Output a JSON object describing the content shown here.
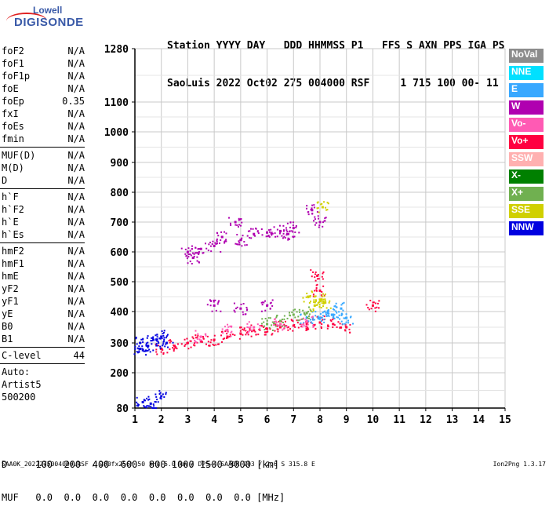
{
  "logo": {
    "line1": "Lowell",
    "line2": "DIGISONDE"
  },
  "header": {
    "line1": "Station YYYY DAY   DDD HHMMSS P1   FFS S AXN PPS IGA PS",
    "line2": "SaoLuis 2022 Oct02 275 004000 RSF     1 715 100 00- 11"
  },
  "params": {
    "group1": [
      {
        "label": "foF2",
        "value": "N/A"
      },
      {
        "label": "foF1",
        "value": "N/A"
      },
      {
        "label": "foF1p",
        "value": "N/A"
      },
      {
        "label": "foE",
        "value": "N/A"
      },
      {
        "label": "foEp",
        "value": "0.35"
      },
      {
        "label": "fxI",
        "value": "N/A"
      },
      {
        "label": "foEs",
        "value": "N/A"
      },
      {
        "label": "fmin",
        "value": "N/A"
      }
    ],
    "group2": [
      {
        "label": "MUF(D)",
        "value": "N/A"
      },
      {
        "label": "M(D)",
        "value": "N/A"
      },
      {
        "label": "D",
        "value": "N/A"
      }
    ],
    "group3": [
      {
        "label": "h`F",
        "value": "N/A"
      },
      {
        "label": "h`F2",
        "value": "N/A"
      },
      {
        "label": "h`E",
        "value": "N/A"
      },
      {
        "label": "h`Es",
        "value": "N/A"
      }
    ],
    "group4": [
      {
        "label": "hmF2",
        "value": "N/A"
      },
      {
        "label": "hmF1",
        "value": "N/A"
      },
      {
        "label": "hmE",
        "value": "N/A"
      },
      {
        "label": "yF2",
        "value": "N/A"
      },
      {
        "label": "yF1",
        "value": "N/A"
      },
      {
        "label": "yE",
        "value": "N/A"
      },
      {
        "label": "B0",
        "value": "N/A"
      },
      {
        "label": "B1",
        "value": "N/A"
      }
    ],
    "clevel": {
      "label": "C-level",
      "value": "44"
    },
    "auto": [
      "Auto:",
      "Artist5",
      "500200"
    ]
  },
  "legend": [
    {
      "label": "NoVal",
      "color": "#8c8c8c"
    },
    {
      "label": "NNE",
      "color": "#00e0ff"
    },
    {
      "label": "E",
      "color": "#38a8ff"
    },
    {
      "label": "W",
      "color": "#b000b0"
    },
    {
      "label": "Vo-",
      "color": "#ff5ab4"
    },
    {
      "label": "Vo+",
      "color": "#ff0040"
    },
    {
      "label": "SSW",
      "color": "#ffb0b0"
    },
    {
      "label": "X-",
      "color": "#008000"
    },
    {
      "label": "X+",
      "color": "#70b050"
    },
    {
      "label": "SSE",
      "color": "#d0d000"
    },
    {
      "label": "NNW",
      "color": "#0000e0"
    }
  ],
  "footer": {
    "line1": "D     100  200  400  600  800 1000 1500 3000 [km]",
    "line2": "MUF   0.0  0.0  0.0  0.0  0.0  0.0  0.0  0.0 [MHz]",
    "bottom": "SAA0K_2022275004000.RSF / 280fx256h 50 kHz 5.0 km / DPS-4 SAA0K 903 / 2.6 S 315.8 E",
    "version": "Ion2Png 1.3.17"
  },
  "chart_data": {
    "type": "scatter",
    "x_ticks": [
      "1",
      "2",
      "3",
      "4",
      "5",
      "6",
      "7",
      "8",
      "9",
      "10",
      "11",
      "12",
      "13",
      "14",
      "15"
    ],
    "y_ticks": [
      "80",
      "200",
      "300",
      "400",
      "500",
      "600",
      "700",
      "800",
      "900",
      "1000",
      "1100",
      "1280"
    ],
    "xlim": [
      1,
      15
    ],
    "ylim": [
      80,
      1280
    ],
    "grid": true,
    "series": [
      {
        "name": "Vo+",
        "color": "#ff0040",
        "points": [
          [
            2.0,
            280
          ],
          [
            2.5,
            290
          ],
          [
            3.0,
            300
          ],
          [
            3.5,
            305
          ],
          [
            4.0,
            310
          ],
          [
            4.5,
            320
          ],
          [
            5.0,
            330
          ],
          [
            5.5,
            340
          ],
          [
            6.0,
            345
          ],
          [
            6.5,
            350
          ],
          [
            7.0,
            355
          ],
          [
            7.5,
            360
          ],
          [
            8.0,
            365
          ],
          [
            8.5,
            360
          ],
          [
            9.0,
            350
          ],
          [
            7.9,
            520
          ],
          [
            8.0,
            470
          ],
          [
            10.0,
            420
          ]
        ]
      },
      {
        "name": "W",
        "color": "#b000b0",
        "points": [
          [
            3.0,
            600
          ],
          [
            3.5,
            610
          ],
          [
            4.0,
            620
          ],
          [
            4.3,
            650
          ],
          [
            5.0,
            640
          ],
          [
            5.5,
            660
          ],
          [
            6.0,
            665
          ],
          [
            6.5,
            670
          ],
          [
            7.0,
            680
          ],
          [
            7.7,
            740
          ],
          [
            8.0,
            700
          ],
          [
            4.0,
            420
          ],
          [
            5.0,
            410
          ],
          [
            6.0,
            420
          ],
          [
            3.2,
            580
          ],
          [
            4.8,
            700
          ],
          [
            6.8,
            660
          ]
        ]
      },
      {
        "name": "NNW",
        "color": "#0000e0",
        "points": [
          [
            1.2,
            300
          ],
          [
            1.5,
            290
          ],
          [
            1.7,
            310
          ],
          [
            2.0,
            320
          ],
          [
            2.2,
            300
          ],
          [
            1.3,
            100
          ],
          [
            1.6,
            95
          ],
          [
            2.0,
            120
          ],
          [
            1.2,
            280
          ]
        ]
      },
      {
        "name": "E",
        "color": "#38a8ff",
        "points": [
          [
            8.0,
            380
          ],
          [
            8.3,
            400
          ],
          [
            8.5,
            390
          ],
          [
            8.8,
            410
          ],
          [
            9.0,
            380
          ],
          [
            7.5,
            380
          ]
        ]
      },
      {
        "name": "SSE",
        "color": "#d0d000",
        "points": [
          [
            7.8,
            420
          ],
          [
            8.0,
            440
          ],
          [
            8.2,
            430
          ],
          [
            7.6,
            450
          ],
          [
            8.1,
            750
          ]
        ]
      },
      {
        "name": "X+",
        "color": "#70b050",
        "points": [
          [
            6.0,
            360
          ],
          [
            6.5,
            370
          ],
          [
            7.0,
            390
          ],
          [
            7.5,
            395
          ]
        ]
      },
      {
        "name": "Vo-",
        "color": "#ff5ab4",
        "points": [
          [
            3.5,
            320
          ],
          [
            4.5,
            340
          ],
          [
            5.5,
            350
          ],
          [
            6.5,
            360
          ],
          [
            7.5,
            370
          ]
        ]
      }
    ]
  }
}
